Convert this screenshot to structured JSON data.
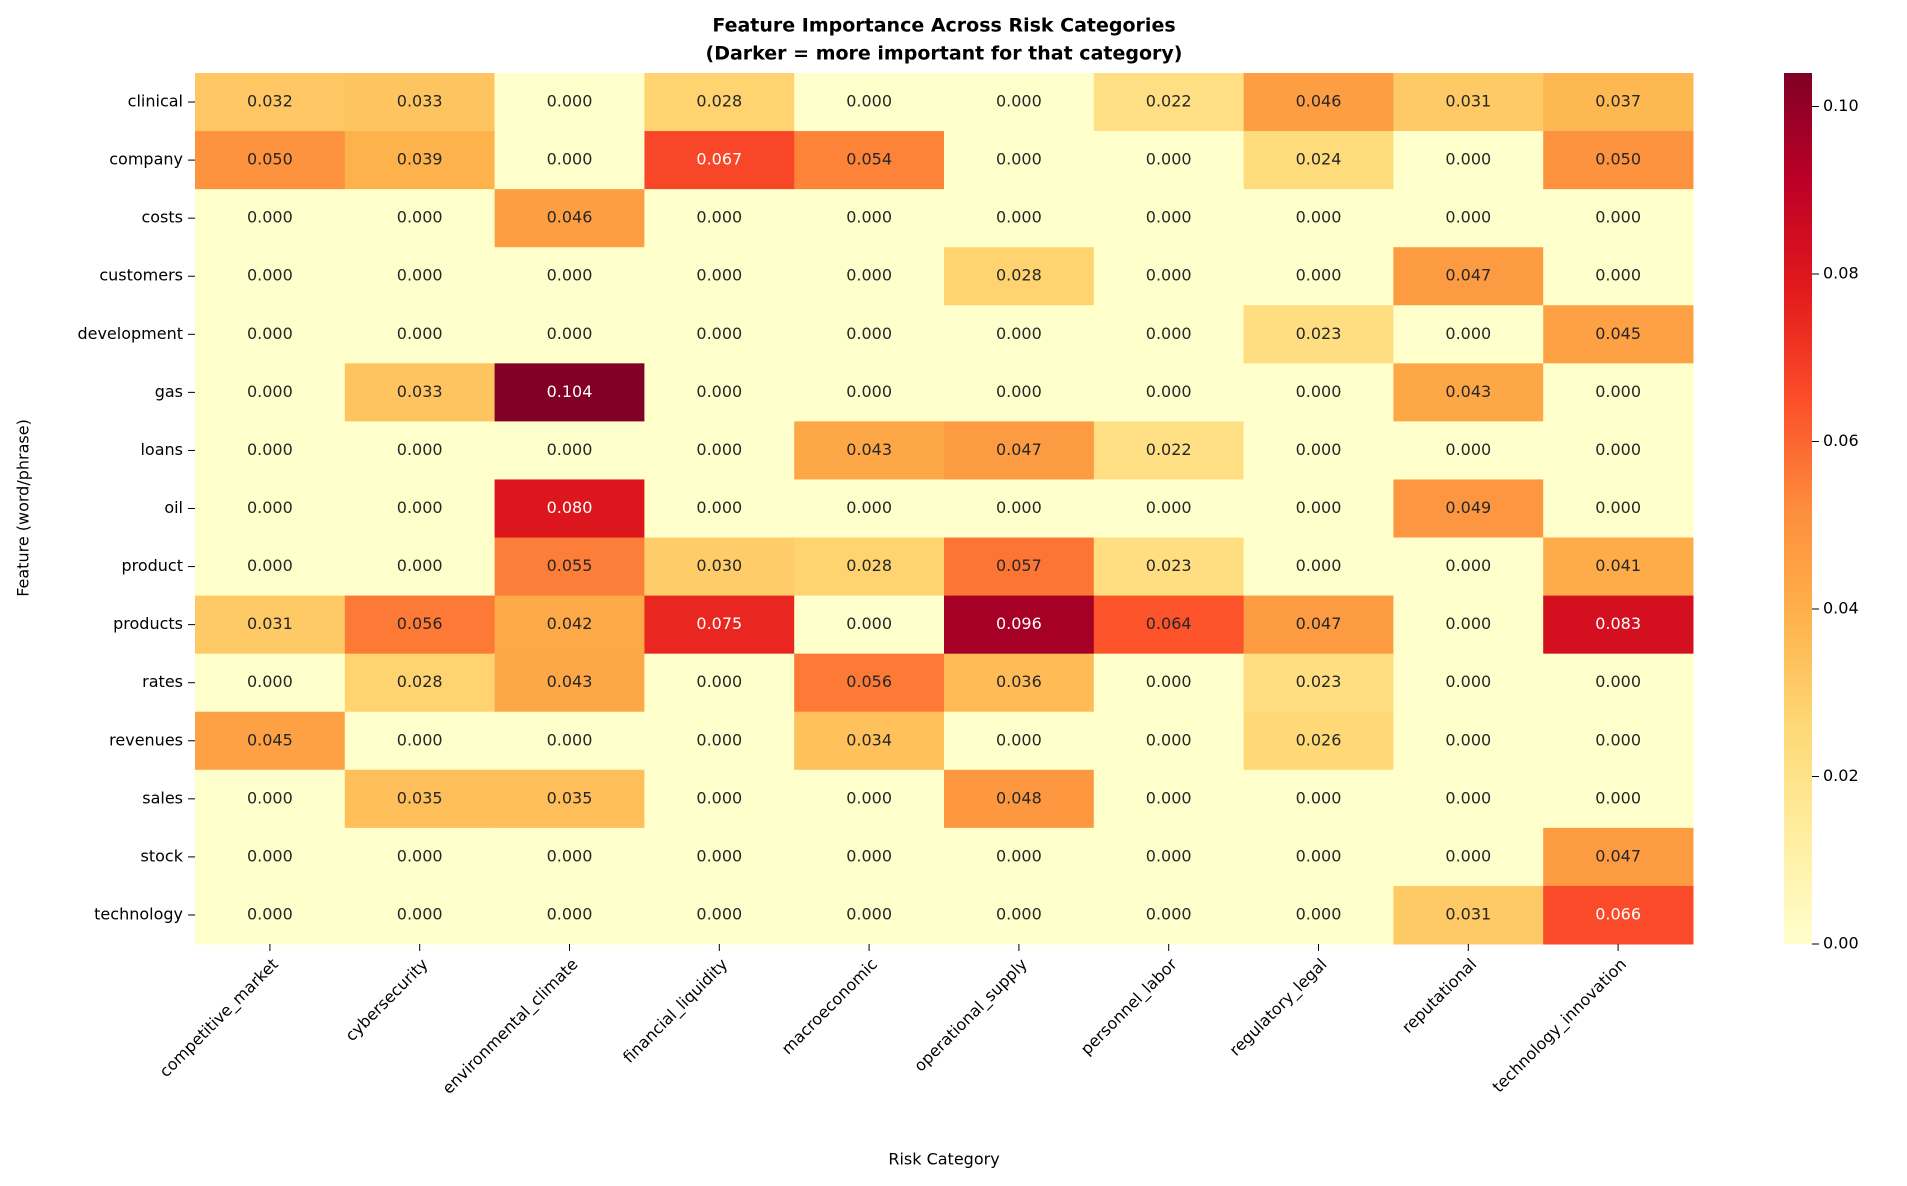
{
  "chart_data": {
    "type": "heatmap",
    "title": "Feature Importance Across Risk Categories",
    "subtitle": "(Darker = more important for that category)",
    "x_label": "Risk Category",
    "y_label": "Feature (word/phrase)",
    "categories": [
      "competitive_market",
      "cybersecurity",
      "environmental_climate",
      "financial_liquidity",
      "macroeconomic",
      "operational_supply",
      "personnel_labor",
      "regulatory_legal",
      "reputational",
      "technology_innovation"
    ],
    "rows": [
      "clinical",
      "company",
      "costs",
      "customers",
      "development",
      "gas",
      "loans",
      "oil",
      "product",
      "products",
      "rates",
      "revenues",
      "sales",
      "stock",
      "technology"
    ],
    "values": [
      [
        0.032,
        0.033,
        0,
        0.028,
        0,
        0,
        0.022,
        0.046,
        0.031,
        0.037
      ],
      [
        0.05,
        0.039,
        0,
        0.067,
        0.054,
        0,
        0,
        0.024,
        0,
        0.05
      ],
      [
        0,
        0,
        0.046,
        0,
        0,
        0,
        0,
        0,
        0,
        0
      ],
      [
        0,
        0,
        0,
        0,
        0,
        0.028,
        0,
        0,
        0.047,
        0
      ],
      [
        0,
        0,
        0,
        0,
        0,
        0,
        0,
        0.023,
        0,
        0.045
      ],
      [
        0,
        0.033,
        0.104,
        0,
        0,
        0,
        0,
        0,
        0.043,
        0
      ],
      [
        0,
        0,
        0,
        0,
        0.043,
        0.047,
        0.022,
        0,
        0,
        0
      ],
      [
        0,
        0,
        0.08,
        0,
        0,
        0,
        0,
        0,
        0.049,
        0
      ],
      [
        0,
        0,
        0.055,
        0.03,
        0.028,
        0.057,
        0.023,
        0,
        0,
        0.041
      ],
      [
        0.031,
        0.056,
        0.042,
        0.075,
        0,
        0.096,
        0.064,
        0.047,
        0,
        0.083
      ],
      [
        0,
        0.028,
        0.043,
        0,
        0.056,
        0.036,
        0,
        0.023,
        0,
        0
      ],
      [
        0.045,
        0,
        0,
        0,
        0.034,
        0,
        0,
        0.026,
        0,
        0
      ],
      [
        0,
        0.035,
        0.035,
        0,
        0,
        0.048,
        0,
        0,
        0,
        0
      ],
      [
        0,
        0,
        0,
        0,
        0,
        0,
        0,
        0,
        0,
        0.047
      ],
      [
        0,
        0,
        0,
        0,
        0,
        0,
        0,
        0,
        0.031,
        0.066
      ]
    ],
    "value_labels": [
      [
        "0.032",
        "0.033",
        "0.000",
        "0.028",
        "0.000",
        "0.000",
        "0.022",
        "0.046",
        "0.031",
        "0.037"
      ],
      [
        "0.050",
        "0.039",
        "0.000",
        "0.067",
        "0.054",
        "0.000",
        "0.000",
        "0.024",
        "0.000",
        "0.050"
      ],
      [
        "0.000",
        "0.000",
        "0.046",
        "0.000",
        "0.000",
        "0.000",
        "0.000",
        "0.000",
        "0.000",
        "0.000"
      ],
      [
        "0.000",
        "0.000",
        "0.000",
        "0.000",
        "0.000",
        "0.028",
        "0.000",
        "0.000",
        "0.047",
        "0.000"
      ],
      [
        "0.000",
        "0.000",
        "0.000",
        "0.000",
        "0.000",
        "0.000",
        "0.000",
        "0.023",
        "0.000",
        "0.045"
      ],
      [
        "0.000",
        "0.033",
        "0.104",
        "0.000",
        "0.000",
        "0.000",
        "0.000",
        "0.000",
        "0.043",
        "0.000"
      ],
      [
        "0.000",
        "0.000",
        "0.000",
        "0.000",
        "0.043",
        "0.047",
        "0.022",
        "0.000",
        "0.000",
        "0.000"
      ],
      [
        "0.000",
        "0.000",
        "0.080",
        "0.000",
        "0.000",
        "0.000",
        "0.000",
        "0.000",
        "0.049",
        "0.000"
      ],
      [
        "0.000",
        "0.000",
        "0.055",
        "0.030",
        "0.028",
        "0.057",
        "0.023",
        "0.000",
        "0.000",
        "0.041"
      ],
      [
        "0.031",
        "0.056",
        "0.042",
        "0.075",
        "0.000",
        "0.096",
        "0.064",
        "0.047",
        "0.000",
        "0.083"
      ],
      [
        "0.000",
        "0.028",
        "0.043",
        "0.000",
        "0.056",
        "0.036",
        "0.000",
        "0.023",
        "0.000",
        "0.000"
      ],
      [
        "0.045",
        "0.000",
        "0.000",
        "0.000",
        "0.034",
        "0.000",
        "0.000",
        "0.026",
        "0.000",
        "0.000"
      ],
      [
        "0.000",
        "0.035",
        "0.035",
        "0.000",
        "0.000",
        "0.048",
        "0.000",
        "0.000",
        "0.000",
        "0.000"
      ],
      [
        "0.000",
        "0.000",
        "0.000",
        "0.000",
        "0.000",
        "0.000",
        "0.000",
        "0.000",
        "0.000",
        "0.047"
      ],
      [
        "0.000",
        "0.000",
        "0.000",
        "0.000",
        "0.000",
        "0.000",
        "0.000",
        "0.000",
        "0.031",
        "0.066"
      ]
    ],
    "colormap": "YlOrRd",
    "clim": [
      0,
      0.104
    ],
    "cticks": [
      {
        "value": 0,
        "label": "0.00"
      },
      {
        "value": 0.02,
        "label": "0.02"
      },
      {
        "value": 0.04,
        "label": "0.04"
      },
      {
        "value": 0.06,
        "label": "0.06"
      },
      {
        "value": 0.08,
        "label": "0.08"
      },
      {
        "value": 0.1,
        "label": "0.10"
      }
    ]
  }
}
